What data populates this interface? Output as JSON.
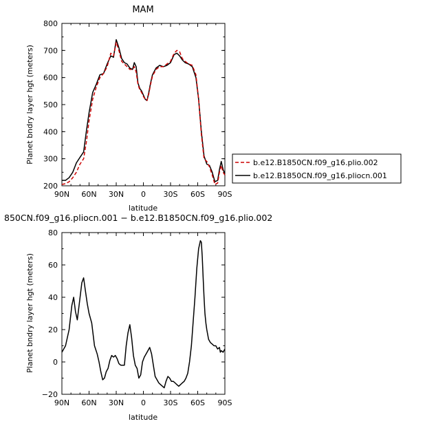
{
  "legend": {
    "entries": [
      {
        "label": "b.e12.B1850CN.f09_g16.plio.002",
        "color": "#cc0000",
        "dash": "dashed"
      },
      {
        "label": "b.e12.B1850CN.f09_g16.pliocn.001",
        "color": "#000000",
        "dash": "solid"
      }
    ]
  },
  "chart_data": [
    {
      "type": "line",
      "title": "MAM",
      "xlabel": "latitude",
      "ylabel": "Planet bndry layer hgt (meters)",
      "xlim": [
        90,
        -90
      ],
      "ylim": [
        200,
        800
      ],
      "xticks": [
        90,
        60,
        30,
        0,
        -30,
        -60,
        -90
      ],
      "xtick_labels": [
        "90N",
        "60N",
        "30N",
        "0",
        "30S",
        "60S",
        "90S"
      ],
      "yticks": [
        200,
        300,
        400,
        500,
        600,
        700,
        800
      ],
      "ytick_labels": [
        "200",
        "300",
        "400",
        "500",
        "600",
        "700",
        "800"
      ],
      "series": [
        {
          "name": "b.e12.B1850CN.f09_g16.pliocn.001",
          "color": "#000000",
          "dash": "solid",
          "x": [
            90,
            86,
            82,
            78,
            74,
            70,
            66,
            63,
            60,
            56,
            52,
            48,
            44,
            40,
            36,
            33,
            30,
            27,
            24,
            21,
            18,
            15,
            12,
            10,
            8,
            6,
            4,
            2,
            0,
            -2,
            -4,
            -6,
            -8,
            -10,
            -14,
            -18,
            -22,
            -26,
            -30,
            -34,
            -37,
            -40,
            -43,
            -46,
            -50,
            -54,
            -58,
            -61,
            -64,
            -67,
            -70,
            -73,
            -76,
            -79,
            -82,
            -84,
            -86,
            -88,
            -90
          ],
          "y": [
            220,
            220,
            230,
            250,
            285,
            305,
            325,
            400,
            470,
            545,
            575,
            610,
            615,
            650,
            680,
            675,
            740,
            710,
            670,
            655,
            650,
            635,
            630,
            655,
            640,
            580,
            560,
            550,
            535,
            520,
            515,
            545,
            580,
            610,
            635,
            645,
            640,
            645,
            655,
            685,
            690,
            680,
            665,
            655,
            650,
            640,
            600,
            520,
            400,
            310,
            280,
            275,
            250,
            215,
            220,
            260,
            290,
            260,
            245
          ]
        },
        {
          "name": "b.e12.B1850CN.f09_g16.plio.002",
          "color": "#cc0000",
          "dash": "dashed",
          "x": [
            90,
            86,
            82,
            78,
            74,
            70,
            66,
            63,
            60,
            56,
            52,
            48,
            44,
            40,
            36,
            33,
            30,
            27,
            24,
            21,
            18,
            15,
            12,
            10,
            8,
            6,
            4,
            2,
            0,
            -2,
            -4,
            -6,
            -8,
            -10,
            -14,
            -18,
            -22,
            -26,
            -30,
            -34,
            -37,
            -40,
            -43,
            -46,
            -50,
            -54,
            -58,
            -61,
            -64,
            -67,
            -70,
            -73,
            -76,
            -79,
            -82,
            -84,
            -86,
            -88,
            -90
          ],
          "y": [
            205,
            208,
            215,
            230,
            250,
            280,
            300,
            360,
            440,
            520,
            565,
            600,
            615,
            640,
            690,
            680,
            730,
            700,
            660,
            650,
            640,
            630,
            630,
            640,
            620,
            575,
            555,
            545,
            530,
            520,
            515,
            540,
            575,
            605,
            630,
            640,
            640,
            650,
            660,
            690,
            700,
            695,
            670,
            660,
            650,
            645,
            610,
            520,
            390,
            300,
            290,
            270,
            240,
            205,
            210,
            250,
            275,
            250,
            240
          ]
        }
      ]
    },
    {
      "type": "line",
      "title": "850CN.f09_g16.pliocn.001 − b.e12.B1850CN.f09_g16.plio.002",
      "xlabel": "latitude",
      "ylabel": "Planet bndry layer hgt (meters)",
      "xlim": [
        90,
        -90
      ],
      "ylim": [
        -20,
        80
      ],
      "xticks": [
        90,
        60,
        30,
        0,
        -30,
        -60,
        -90
      ],
      "xtick_labels": [
        "90N",
        "60N",
        "30N",
        "0",
        "30S",
        "60S",
        "90S"
      ],
      "yticks": [
        -20,
        0,
        20,
        40,
        60,
        80
      ],
      "ytick_labels": [
        "−20",
        "0",
        "20",
        "40",
        "60",
        "80"
      ],
      "series": [
        {
          "color": "#000000",
          "dash": "solid",
          "x": [
            90,
            86,
            82,
            79,
            77,
            75,
            73,
            71,
            68,
            66,
            64,
            62,
            60,
            57,
            54,
            51,
            49,
            47,
            45,
            43,
            41,
            39,
            37,
            35,
            33,
            31,
            29,
            27,
            25,
            23,
            21,
            19,
            17,
            15,
            13,
            11,
            9,
            7,
            5,
            3,
            1,
            -1,
            -3,
            -5,
            -7,
            -9,
            -11,
            -13,
            -15,
            -17,
            -19,
            -21,
            -23,
            -25,
            -27,
            -29,
            -31,
            -33,
            -35,
            -37,
            -39,
            -41,
            -43,
            -45,
            -47,
            -49,
            -51,
            -53,
            -55,
            -57,
            -59,
            -61,
            -63,
            -64,
            -65,
            -66,
            -67,
            -68,
            -69,
            -70,
            -71,
            -72,
            -74,
            -76,
            -78,
            -80,
            -82,
            -84,
            -85,
            -86,
            -88,
            -90
          ],
          "y": [
            6,
            10,
            20,
            35,
            40,
            31,
            26,
            35,
            49,
            52,
            44,
            36,
            30,
            24,
            10,
            5,
            0,
            -6,
            -11,
            -10,
            -6,
            -4,
            1,
            4,
            3,
            4,
            2,
            -1,
            -2,
            -2,
            -2,
            10,
            18,
            23,
            15,
            4,
            -2,
            -4,
            -10,
            -8,
            0,
            3,
            5,
            7,
            9,
            5,
            -2,
            -9,
            -11,
            -13,
            -14,
            -15,
            -16,
            -12,
            -9,
            -10,
            -12,
            -12,
            -13,
            -14,
            -15,
            -14,
            -13,
            -12,
            -10,
            -7,
            0,
            10,
            25,
            40,
            58,
            70,
            75,
            74,
            65,
            52,
            40,
            30,
            24,
            20,
            17,
            14,
            12,
            11,
            10,
            10,
            8,
            9,
            6,
            7,
            6,
            8
          ]
        }
      ]
    }
  ]
}
